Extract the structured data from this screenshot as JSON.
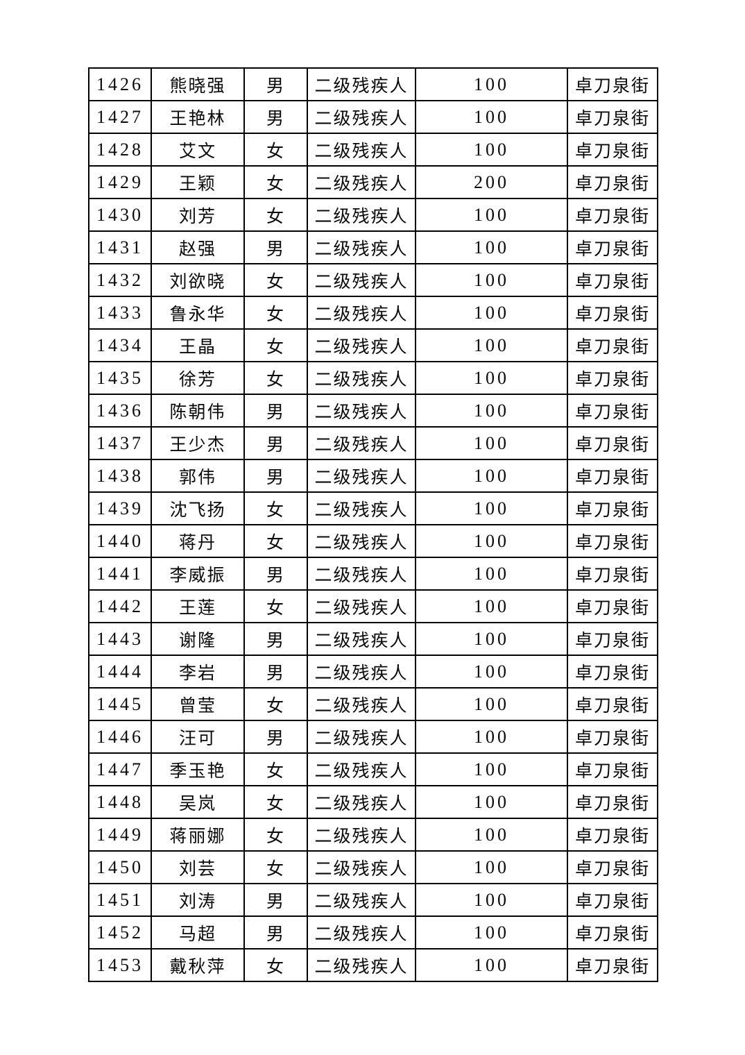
{
  "table": {
    "rows": [
      [
        "1426",
        "熊晓强",
        "男",
        "二级残疾人",
        "100",
        "卓刀泉街"
      ],
      [
        "1427",
        "王艳林",
        "男",
        "二级残疾人",
        "100",
        "卓刀泉街"
      ],
      [
        "1428",
        "艾文",
        "女",
        "二级残疾人",
        "100",
        "卓刀泉街"
      ],
      [
        "1429",
        "王颖",
        "女",
        "二级残疾人",
        "200",
        "卓刀泉街"
      ],
      [
        "1430",
        "刘芳",
        "女",
        "二级残疾人",
        "100",
        "卓刀泉街"
      ],
      [
        "1431",
        "赵强",
        "男",
        "二级残疾人",
        "100",
        "卓刀泉街"
      ],
      [
        "1432",
        "刘欲晓",
        "女",
        "二级残疾人",
        "100",
        "卓刀泉街"
      ],
      [
        "1433",
        "鲁永华",
        "女",
        "二级残疾人",
        "100",
        "卓刀泉街"
      ],
      [
        "1434",
        "王晶",
        "女",
        "二级残疾人",
        "100",
        "卓刀泉街"
      ],
      [
        "1435",
        "徐芳",
        "女",
        "二级残疾人",
        "100",
        "卓刀泉街"
      ],
      [
        "1436",
        "陈朝伟",
        "男",
        "二级残疾人",
        "100",
        "卓刀泉街"
      ],
      [
        "1437",
        "王少杰",
        "男",
        "二级残疾人",
        "100",
        "卓刀泉街"
      ],
      [
        "1438",
        "郭伟",
        "男",
        "二级残疾人",
        "100",
        "卓刀泉街"
      ],
      [
        "1439",
        "沈飞扬",
        "女",
        "二级残疾人",
        "100",
        "卓刀泉街"
      ],
      [
        "1440",
        "蒋丹",
        "女",
        "二级残疾人",
        "100",
        "卓刀泉街"
      ],
      [
        "1441",
        "李威振",
        "男",
        "二级残疾人",
        "100",
        "卓刀泉街"
      ],
      [
        "1442",
        "王莲",
        "女",
        "二级残疾人",
        "100",
        "卓刀泉街"
      ],
      [
        "1443",
        "谢隆",
        "男",
        "二级残疾人",
        "100",
        "卓刀泉街"
      ],
      [
        "1444",
        "李岩",
        "男",
        "二级残疾人",
        "100",
        "卓刀泉街"
      ],
      [
        "1445",
        "曾莹",
        "女",
        "二级残疾人",
        "100",
        "卓刀泉街"
      ],
      [
        "1446",
        "汪可",
        "男",
        "二级残疾人",
        "100",
        "卓刀泉街"
      ],
      [
        "1447",
        "季玉艳",
        "女",
        "二级残疾人",
        "100",
        "卓刀泉街"
      ],
      [
        "1448",
        "吴岚",
        "女",
        "二级残疾人",
        "100",
        "卓刀泉街"
      ],
      [
        "1449",
        "蒋丽娜",
        "女",
        "二级残疾人",
        "100",
        "卓刀泉街"
      ],
      [
        "1450",
        "刘芸",
        "女",
        "二级残疾人",
        "100",
        "卓刀泉街"
      ],
      [
        "1451",
        "刘涛",
        "男",
        "二级残疾人",
        "100",
        "卓刀泉街"
      ],
      [
        "1452",
        "马超",
        "男",
        "二级残疾人",
        "100",
        "卓刀泉街"
      ],
      [
        "1453",
        "戴秋萍",
        "女",
        "二级残疾人",
        "100",
        "卓刀泉街"
      ]
    ]
  }
}
